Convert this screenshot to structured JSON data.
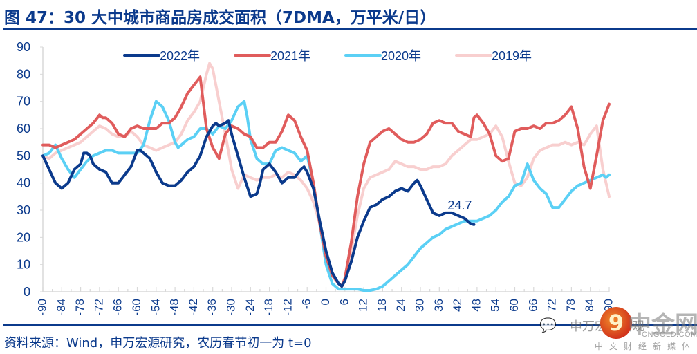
{
  "title": "图 47：30 大中城市商品房成交面积（7DMA，万平米/日）",
  "source": "资料来源：Wind，申万宏源研究，农历春节初一为 t=0",
  "watermark": {
    "brand": "中金网",
    "url": "CNGOLD.COM.CN",
    "subtitle": "中文财经新媒体",
    "account": "申万宏源宏观",
    "logo_glyph": "9",
    "chat_icon": "wechat-icon"
  },
  "chart_data": {
    "type": "line",
    "title": "30大中城市商品房成交面积（7DMA，万平米/日）",
    "xlabel": "",
    "ylabel": "",
    "xlim": [
      -90,
      90
    ],
    "ylim": [
      0,
      90
    ],
    "yticks": [
      0,
      10,
      20,
      30,
      40,
      50,
      60,
      70,
      80,
      90
    ],
    "xticks": [
      -90,
      -84,
      -78,
      -72,
      -66,
      -60,
      -54,
      -48,
      -42,
      -36,
      -30,
      -24,
      -18,
      -12,
      -6,
      0,
      6,
      12,
      18,
      24,
      30,
      36,
      42,
      48,
      54,
      60,
      66,
      72,
      78,
      84,
      90
    ],
    "grid": false,
    "legend_position": "top",
    "series": [
      {
        "name": "2022年",
        "color": "#0b3a8c",
        "x": [
          -90,
          -88,
          -86,
          -84,
          -82,
          -80,
          -78,
          -77,
          -76,
          -75,
          -74,
          -72,
          -70,
          -68,
          -66,
          -64,
          -62,
          -60,
          -59,
          -58,
          -56,
          -54,
          -52,
          -50,
          -48,
          -46,
          -44,
          -42,
          -40,
          -38,
          -36,
          -35,
          -34,
          -32,
          -31,
          -30,
          -28,
          -26,
          -24,
          -22,
          -21,
          -20,
          -18,
          -16,
          -14,
          -12,
          -10,
          -8,
          -7,
          -6,
          -4,
          -2,
          0,
          2,
          4,
          5,
          6,
          8,
          10,
          12,
          14,
          16,
          18,
          20,
          22,
          24,
          26,
          28,
          29,
          30,
          32,
          34,
          36,
          38,
          40,
          42,
          44,
          46,
          47
        ],
        "y": [
          50,
          45,
          40,
          38,
          40,
          45,
          47,
          51,
          51,
          50,
          47,
          45,
          44,
          40,
          40,
          43,
          46,
          52,
          52,
          51,
          49,
          44,
          40,
          39,
          39,
          41,
          44,
          46,
          50,
          57,
          61,
          62,
          61,
          62,
          63,
          58,
          50,
          42,
          35,
          36,
          40,
          45,
          47,
          44,
          40,
          42,
          42,
          45,
          46,
          44,
          38,
          26,
          15,
          7,
          3,
          2,
          4,
          11,
          20,
          26,
          31,
          32,
          34,
          35,
          37,
          38,
          37,
          40,
          41,
          39,
          34,
          29,
          28,
          29,
          29,
          28,
          27,
          25,
          24.7
        ]
      },
      {
        "name": "2021年",
        "color": "#e05c5c",
        "x": [
          -90,
          -88,
          -86,
          -84,
          -82,
          -80,
          -78,
          -76,
          -74,
          -72,
          -71,
          -70,
          -68,
          -66,
          -64,
          -62,
          -60,
          -58,
          -56,
          -54,
          -52,
          -50,
          -48,
          -46,
          -44,
          -42,
          -40,
          -38,
          -36,
          -34,
          -32,
          -30,
          -28,
          -26,
          -24,
          -22,
          -20,
          -18,
          -16,
          -14,
          -12,
          -10,
          -8,
          -6,
          -4,
          -2,
          0,
          2,
          4,
          5,
          6,
          8,
          10,
          12,
          14,
          16,
          18,
          20,
          22,
          24,
          26,
          28,
          30,
          32,
          34,
          36,
          38,
          40,
          42,
          44,
          46,
          47,
          48,
          50,
          52,
          54,
          56,
          58,
          60,
          62,
          64,
          66,
          68,
          70,
          72,
          74,
          76,
          78,
          80,
          82,
          84,
          86,
          88,
          90
        ],
        "y": [
          54,
          54,
          53,
          54,
          55,
          56,
          58,
          60,
          62,
          65,
          64,
          64,
          62,
          58,
          57,
          60,
          61,
          60,
          60,
          60,
          62,
          62,
          64,
          68,
          73,
          76,
          79,
          60,
          53,
          49,
          58,
          61,
          60,
          58,
          57,
          53,
          53,
          55,
          55,
          59,
          65,
          63,
          57,
          52,
          40,
          25,
          13,
          6,
          3,
          2,
          5,
          18,
          35,
          47,
          55,
          57,
          59,
          60,
          58,
          56,
          55,
          55,
          56,
          58,
          62,
          63,
          62,
          62,
          59,
          58,
          57,
          64,
          65,
          62,
          58,
          50,
          48,
          49,
          59,
          60,
          60,
          61,
          60,
          62,
          62,
          63,
          65,
          68,
          60,
          46,
          38,
          50,
          63,
          69
        ]
      },
      {
        "name": "2020年",
        "color": "#5bd0f5",
        "x": [
          -90,
          -88,
          -86,
          -84,
          -82,
          -80,
          -78,
          -76,
          -74,
          -72,
          -70,
          -68,
          -66,
          -64,
          -62,
          -60,
          -58,
          -56,
          -54,
          -52,
          -50,
          -48,
          -47,
          -46,
          -44,
          -42,
          -40,
          -38,
          -36,
          -34,
          -32,
          -30,
          -28,
          -26,
          -25,
          -24,
          -22,
          -20,
          -18,
          -16,
          -14,
          -12,
          -10,
          -8,
          -6,
          -4,
          -2,
          0,
          2,
          4,
          6,
          8,
          10,
          12,
          14,
          16,
          18,
          20,
          22,
          24,
          26,
          28,
          30,
          32,
          34,
          36,
          38,
          40,
          42,
          44,
          46,
          48,
          50,
          52,
          54,
          56,
          58,
          60,
          62,
          64,
          66,
          68,
          70,
          72,
          74,
          76,
          78,
          80,
          82,
          84,
          86,
          88,
          89,
          90
        ],
        "y": [
          50,
          51,
          54,
          49,
          45,
          42,
          45,
          48,
          50,
          51,
          52,
          52,
          51,
          51,
          51,
          51,
          54,
          63,
          70,
          68,
          63,
          55,
          53,
          54,
          56,
          57,
          60,
          60,
          58,
          61,
          60,
          63,
          68,
          70,
          64,
          56,
          49,
          47,
          47,
          52,
          53,
          52,
          51,
          48,
          50,
          40,
          25,
          10,
          3,
          1,
          1,
          1,
          1,
          0.5,
          0.5,
          1,
          2,
          4,
          6,
          8,
          10,
          13,
          16,
          18,
          20,
          21,
          23,
          24,
          25,
          26,
          26,
          26,
          27,
          28,
          30,
          33,
          35,
          39,
          40,
          47,
          41,
          38,
          36,
          31,
          31,
          34,
          37,
          39,
          40,
          41,
          42,
          43,
          42,
          43
        ]
      },
      {
        "name": "2019年",
        "color": "#f8cfcf",
        "x": [
          -90,
          -88,
          -86,
          -84,
          -82,
          -80,
          -78,
          -76,
          -74,
          -72,
          -70,
          -68,
          -66,
          -64,
          -62,
          -60,
          -58,
          -56,
          -54,
          -52,
          -50,
          -48,
          -46,
          -44,
          -42,
          -40,
          -38,
          -37,
          -36,
          -34,
          -32,
          -30,
          -28,
          -26,
          -24,
          -22,
          -20,
          -18,
          -16,
          -14,
          -12,
          -10,
          -8,
          -6,
          -4,
          -2,
          0,
          2,
          4,
          5,
          6,
          8,
          10,
          12,
          14,
          16,
          18,
          20,
          22,
          24,
          26,
          28,
          30,
          32,
          34,
          36,
          38,
          40,
          42,
          44,
          46,
          48,
          50,
          52,
          54,
          56,
          58,
          60,
          62,
          64,
          66,
          68,
          70,
          72,
          74,
          76,
          78,
          80,
          82,
          84,
          86,
          88,
          90
        ],
        "y": [
          50,
          49,
          51,
          52,
          53,
          54,
          55,
          57,
          59,
          61,
          60,
          58,
          57,
          57,
          59,
          57,
          54,
          53,
          52,
          53,
          54,
          55,
          58,
          63,
          66,
          70,
          80,
          84,
          82,
          70,
          58,
          45,
          38,
          43,
          42,
          41,
          42,
          42,
          43,
          42,
          44,
          43,
          41,
          38,
          33,
          25,
          14,
          6,
          3,
          2,
          4,
          15,
          28,
          38,
          42,
          43,
          44,
          45,
          48,
          47,
          46,
          46,
          45,
          45,
          46,
          46,
          47,
          50,
          52,
          54,
          56,
          56,
          57,
          58,
          61,
          57,
          48,
          40,
          39,
          42,
          49,
          52,
          53,
          54,
          54,
          55,
          54,
          55,
          54,
          58,
          61,
          45,
          35
        ]
      }
    ],
    "annotations": [
      {
        "text": "24.7",
        "x": 47,
        "y": 24.7,
        "series": "2022年"
      }
    ]
  }
}
